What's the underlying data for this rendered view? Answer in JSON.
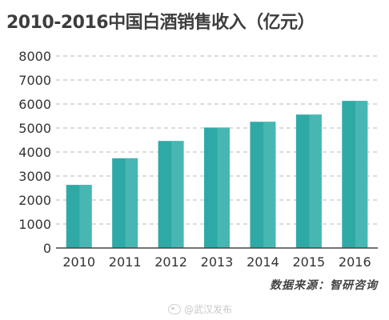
{
  "chart_data": {
    "type": "bar",
    "title": "2010-2016中国白酒销售收入（亿元）",
    "categories": [
      "2010",
      "2011",
      "2012",
      "2013",
      "2014",
      "2015",
      "2016"
    ],
    "values": [
      2630,
      3740,
      4460,
      5020,
      5260,
      5560,
      6130
    ],
    "ylim": [
      0,
      8000
    ],
    "yticks": [
      0,
      1000,
      2000,
      3000,
      4000,
      5000,
      6000,
      7000,
      8000
    ],
    "grid": true,
    "bar_color": "#2fa9a6",
    "bar_highlight_color": "#5cc3bf",
    "source": "数据来源：智研咨询"
  },
  "watermark": {
    "icon": "weibo-logo-icon",
    "text": "@武汉发布"
  }
}
